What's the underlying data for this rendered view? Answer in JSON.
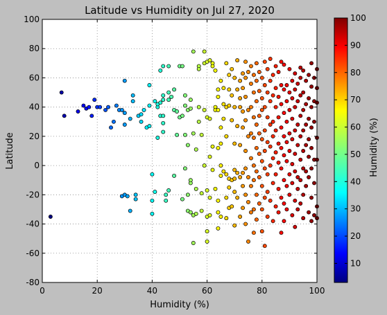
{
  "chart_data": {
    "type": "scatter",
    "title": "Latitude vs Humidity on Jul 27, 2020",
    "xlabel": "Humidity (%)",
    "ylabel": "Latitude",
    "xlim": [
      0,
      100
    ],
    "ylim": [
      -80,
      100
    ],
    "xticks": [
      0,
      20,
      40,
      60,
      80,
      100
    ],
    "yticks": [
      -80,
      -60,
      -40,
      -20,
      0,
      20,
      40,
      60,
      80,
      100
    ],
    "grid": true,
    "colorbar": {
      "label": "Humidity (%)",
      "range": [
        3,
        100
      ],
      "ticks": [
        10,
        20,
        30,
        40,
        50,
        60,
        70,
        80,
        90,
        100
      ],
      "colormap": "jet"
    },
    "points": [
      [
        3,
        -35
      ],
      [
        7,
        50
      ],
      [
        8,
        34
      ],
      [
        13,
        37
      ],
      [
        15,
        41
      ],
      [
        16,
        39
      ],
      [
        17,
        40
      ],
      [
        18,
        34
      ],
      [
        19,
        45
      ],
      [
        20,
        40
      ],
      [
        21,
        40
      ],
      [
        23,
        38
      ],
      [
        24,
        40
      ],
      [
        25,
        26
      ],
      [
        26,
        30
      ],
      [
        27,
        41
      ],
      [
        28,
        38
      ],
      [
        29,
        -21
      ],
      [
        29,
        38
      ],
      [
        30,
        58
      ],
      [
        30,
        36
      ],
      [
        30,
        28
      ],
      [
        30,
        -20
      ],
      [
        31,
        -21
      ],
      [
        32,
        -31
      ],
      [
        32,
        32
      ],
      [
        33,
        48
      ],
      [
        33,
        44
      ],
      [
        34,
        -20
      ],
      [
        34,
        -23
      ],
      [
        35,
        34
      ],
      [
        36,
        30
      ],
      [
        36,
        35
      ],
      [
        37,
        38
      ],
      [
        38,
        26
      ],
      [
        39,
        27
      ],
      [
        39,
        55
      ],
      [
        39,
        41
      ],
      [
        40,
        -6
      ],
      [
        40,
        -24
      ],
      [
        40,
        -33
      ],
      [
        41,
        -18
      ],
      [
        41,
        44
      ],
      [
        42,
        19
      ],
      [
        42,
        40
      ],
      [
        42,
        42
      ],
      [
        43,
        65
      ],
      [
        43,
        34
      ],
      [
        43,
        43
      ],
      [
        44,
        68
      ],
      [
        44,
        34
      ],
      [
        44,
        23
      ],
      [
        44,
        29
      ],
      [
        44,
        45
      ],
      [
        44,
        48
      ],
      [
        45,
        -24
      ],
      [
        45,
        -20
      ],
      [
        46,
        68
      ],
      [
        46,
        -17
      ],
      [
        46,
        50
      ],
      [
        46,
        45
      ],
      [
        47,
        47
      ],
      [
        48,
        -7
      ],
      [
        48,
        52
      ],
      [
        48,
        38
      ],
      [
        49,
        37
      ],
      [
        49,
        21
      ],
      [
        50,
        68
      ],
      [
        50,
        33
      ],
      [
        51,
        68
      ],
      [
        51,
        34
      ],
      [
        51,
        -23
      ],
      [
        52,
        -2
      ],
      [
        52,
        21
      ],
      [
        52,
        41
      ],
      [
        52,
        48
      ],
      [
        53,
        -20
      ],
      [
        53,
        38
      ],
      [
        53,
        -31
      ],
      [
        53,
        14
      ],
      [
        54,
        -12
      ],
      [
        54,
        -10
      ],
      [
        54,
        45
      ],
      [
        54,
        -32
      ],
      [
        54,
        39
      ],
      [
        55,
        78
      ],
      [
        55,
        22
      ],
      [
        55,
        -34
      ],
      [
        55,
        -53
      ],
      [
        56,
        -33
      ],
      [
        56,
        -16
      ],
      [
        56,
        11
      ],
      [
        57,
        68
      ],
      [
        57,
        30
      ],
      [
        57,
        40
      ],
      [
        57,
        66
      ],
      [
        58,
        -19
      ],
      [
        58,
        21
      ],
      [
        58,
        -31
      ],
      [
        59,
        78
      ],
      [
        59,
        70
      ],
      [
        59,
        38
      ],
      [
        59,
        0
      ],
      [
        60,
        71
      ],
      [
        60,
        -17
      ],
      [
        60,
        33
      ],
      [
        60,
        -35
      ],
      [
        60,
        -45
      ],
      [
        60,
        -52
      ],
      [
        61,
        72
      ],
      [
        61,
        32
      ],
      [
        61,
        6
      ],
      [
        61,
        -22
      ],
      [
        61,
        -34
      ],
      [
        62,
        70
      ],
      [
        62,
        68
      ],
      [
        62,
        13
      ],
      [
        62,
        -3
      ],
      [
        63,
        65
      ],
      [
        63,
        40
      ],
      [
        63,
        38
      ],
      [
        63,
        -16
      ],
      [
        64,
        52
      ],
      [
        64,
        38
      ],
      [
        64,
        -24
      ],
      [
        64,
        -32
      ],
      [
        64,
        -43
      ],
      [
        64,
        47
      ],
      [
        64,
        12
      ],
      [
        65,
        58
      ],
      [
        65,
        26
      ],
      [
        65,
        15
      ],
      [
        65,
        0
      ],
      [
        65,
        -7
      ],
      [
        65,
        -35
      ],
      [
        66,
        53
      ],
      [
        66,
        42
      ],
      [
        66,
        32
      ],
      [
        66,
        -4
      ],
      [
        67,
        70
      ],
      [
        67,
        40
      ],
      [
        67,
        20
      ],
      [
        67,
        -6
      ],
      [
        67,
        -22
      ],
      [
        67,
        -36
      ],
      [
        68,
        62
      ],
      [
        68,
        52
      ],
      [
        68,
        41
      ],
      [
        68,
        -9
      ],
      [
        68,
        -15
      ],
      [
        68,
        -29
      ],
      [
        69,
        66
      ],
      [
        69,
        48
      ],
      [
        69,
        31
      ],
      [
        69,
        -10
      ],
      [
        69,
        -28
      ],
      [
        70,
        60
      ],
      [
        70,
        40
      ],
      [
        70,
        15
      ],
      [
        70,
        -3
      ],
      [
        70,
        -9
      ],
      [
        70,
        -18
      ],
      [
        70,
        -41
      ],
      [
        71,
        72
      ],
      [
        71,
        52
      ],
      [
        71,
        27
      ],
      [
        71,
        -5
      ],
      [
        71,
        -22
      ],
      [
        72,
        58
      ],
      [
        72,
        46
      ],
      [
        72,
        40
      ],
      [
        72,
        14
      ],
      [
        72,
        -8
      ],
      [
        72,
        -35
      ],
      [
        73,
        63
      ],
      [
        73,
        53
      ],
      [
        73,
        37
      ],
      [
        73,
        26
      ],
      [
        73,
        -5
      ],
      [
        73,
        -14
      ],
      [
        73,
        -29
      ],
      [
        74,
        71
      ],
      [
        74,
        60
      ],
      [
        74,
        47
      ],
      [
        74,
        31
      ],
      [
        74,
        10
      ],
      [
        74,
        -2
      ],
      [
        74,
        -20
      ],
      [
        74,
        -40
      ],
      [
        75,
        64
      ],
      [
        75,
        38
      ],
      [
        75,
        20
      ],
      [
        75,
        -8
      ],
      [
        75,
        -25
      ],
      [
        75,
        -52
      ],
      [
        76,
        68
      ],
      [
        76,
        56
      ],
      [
        76,
        40
      ],
      [
        76,
        22
      ],
      [
        76,
        5
      ],
      [
        76,
        -14
      ],
      [
        76,
        -32
      ],
      [
        77,
        62
      ],
      [
        77,
        50
      ],
      [
        77,
        33
      ],
      [
        77,
        19
      ],
      [
        77,
        0
      ],
      [
        77,
        -10
      ],
      [
        77,
        -30
      ],
      [
        77,
        -46
      ],
      [
        78,
        70
      ],
      [
        78,
        58
      ],
      [
        78,
        44
      ],
      [
        78,
        28
      ],
      [
        78,
        12
      ],
      [
        78,
        -4
      ],
      [
        78,
        -20
      ],
      [
        78,
        -37
      ],
      [
        79,
        64
      ],
      [
        79,
        51
      ],
      [
        79,
        34
      ],
      [
        79,
        22
      ],
      [
        79,
        8
      ],
      [
        79,
        -8
      ],
      [
        79,
        -26
      ],
      [
        80,
        60
      ],
      [
        80,
        46
      ],
      [
        80,
        38
      ],
      [
        80,
        18
      ],
      [
        80,
        3
      ],
      [
        80,
        -14
      ],
      [
        80,
        -30
      ],
      [
        80,
        -45
      ],
      [
        81,
        71
      ],
      [
        81,
        55
      ],
      [
        81,
        40
      ],
      [
        81,
        24
      ],
      [
        81,
        10
      ],
      [
        81,
        -2
      ],
      [
        81,
        -22
      ],
      [
        81,
        -55
      ],
      [
        82,
        66
      ],
      [
        82,
        50
      ],
      [
        82,
        33
      ],
      [
        82,
        16
      ],
      [
        82,
        -6
      ],
      [
        82,
        -18
      ],
      [
        82,
        -35
      ],
      [
        83,
        73
      ],
      [
        83,
        58
      ],
      [
        83,
        44
      ],
      [
        83,
        28
      ],
      [
        83,
        13
      ],
      [
        83,
        0
      ],
      [
        83,
        -24
      ],
      [
        84,
        62
      ],
      [
        84,
        48
      ],
      [
        84,
        30
      ],
      [
        84,
        20
      ],
      [
        84,
        5
      ],
      [
        84,
        -12
      ],
      [
        84,
        -38
      ],
      [
        85,
        68
      ],
      [
        85,
        53
      ],
      [
        85,
        40
      ],
      [
        85,
        24
      ],
      [
        85,
        9
      ],
      [
        85,
        -6
      ],
      [
        85,
        -28
      ],
      [
        86,
        64
      ],
      [
        86,
        47
      ],
      [
        86,
        33
      ],
      [
        86,
        15
      ],
      [
        86,
        2
      ],
      [
        86,
        -16
      ],
      [
        86,
        -32
      ],
      [
        87,
        71
      ],
      [
        87,
        55
      ],
      [
        87,
        42
      ],
      [
        87,
        26
      ],
      [
        87,
        12
      ],
      [
        87,
        -2
      ],
      [
        87,
        -22
      ],
      [
        87,
        -46
      ],
      [
        88,
        69
      ],
      [
        88,
        52
      ],
      [
        88,
        36
      ],
      [
        88,
        20
      ],
      [
        88,
        7
      ],
      [
        88,
        -10
      ],
      [
        88,
        -26
      ],
      [
        88,
        -38
      ],
      [
        89,
        55
      ],
      [
        89,
        44
      ],
      [
        89,
        30
      ],
      [
        89,
        16
      ],
      [
        89,
        3
      ],
      [
        89,
        -14
      ],
      [
        89,
        -30
      ],
      [
        90,
        66
      ],
      [
        90,
        50
      ],
      [
        90,
        38
      ],
      [
        90,
        22
      ],
      [
        90,
        10
      ],
      [
        90,
        -6
      ],
      [
        90,
        -20
      ],
      [
        91,
        58
      ],
      [
        91,
        46
      ],
      [
        91,
        32
      ],
      [
        91,
        18
      ],
      [
        91,
        1
      ],
      [
        91,
        -12
      ],
      [
        91,
        -34
      ],
      [
        92,
        63
      ],
      [
        92,
        52
      ],
      [
        92,
        40
      ],
      [
        92,
        24
      ],
      [
        92,
        8
      ],
      [
        92,
        -4
      ],
      [
        92,
        -24
      ],
      [
        92,
        -42
      ],
      [
        93,
        56
      ],
      [
        93,
        44
      ],
      [
        93,
        28
      ],
      [
        93,
        14
      ],
      [
        93,
        -8
      ],
      [
        93,
        -16
      ],
      [
        93,
        -30
      ],
      [
        94,
        67
      ],
      [
        94,
        60
      ],
      [
        94,
        48
      ],
      [
        94,
        34
      ],
      [
        94,
        20
      ],
      [
        94,
        4
      ],
      [
        94,
        -10
      ],
      [
        94,
        -26
      ],
      [
        95,
        65
      ],
      [
        95,
        50
      ],
      [
        95,
        38
      ],
      [
        95,
        24
      ],
      [
        95,
        10
      ],
      [
        95,
        -2
      ],
      [
        95,
        -20
      ],
      [
        95,
        -36
      ],
      [
        96,
        58
      ],
      [
        96,
        42
      ],
      [
        96,
        28
      ],
      [
        96,
        14
      ],
      [
        96,
        -4
      ],
      [
        96,
        -14
      ],
      [
        97,
        62
      ],
      [
        97,
        46
      ],
      [
        97,
        32
      ],
      [
        97,
        18
      ],
      [
        97,
        6
      ],
      [
        97,
        -8
      ],
      [
        97,
        -32
      ],
      [
        98,
        70
      ],
      [
        98,
        54
      ],
      [
        98,
        40
      ],
      [
        98,
        26
      ],
      [
        98,
        12
      ],
      [
        98,
        -2
      ],
      [
        98,
        -22
      ],
      [
        98,
        -38
      ],
      [
        99,
        60
      ],
      [
        99,
        44
      ],
      [
        99,
        30
      ],
      [
        99,
        4
      ],
      [
        99,
        -12
      ],
      [
        99,
        -34
      ],
      [
        100,
        66
      ],
      [
        100,
        53
      ],
      [
        100,
        43
      ],
      [
        100,
        19
      ],
      [
        100,
        4
      ],
      [
        100,
        -28
      ],
      [
        100,
        -36
      ]
    ]
  }
}
